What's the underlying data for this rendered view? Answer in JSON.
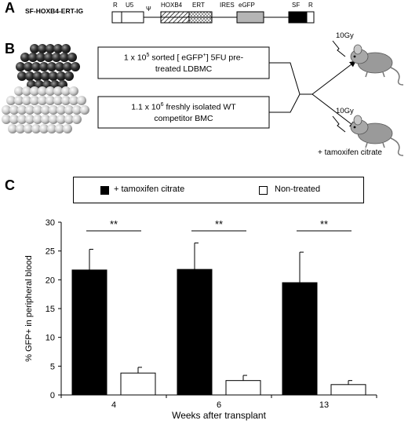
{
  "panel_a": {
    "letter": "A",
    "construct_name": "SF-HOXB4-ERT-IG",
    "segments": [
      "R",
      "U5",
      "Ψ",
      "HOXB4",
      "ERT",
      "IRES",
      "eGFP",
      "SF",
      "R"
    ]
  },
  "panel_b": {
    "letter": "B",
    "box1_line1": "1 x 10",
    "box1_sup": "5",
    "box1_line1_rest": " sorted [ eGFP",
    "box1_sup2": "+",
    "box1_line1_end": "] 5FU pre-",
    "box1_line2": "treated LDBMC",
    "box2_line1": "1.1 x 10",
    "box2_sup": "6",
    "box2_line1_rest": " freshly isolated WT",
    "box2_line2": "competitor BMC",
    "irradiation_top": "10Gy",
    "irradiation_bottom": "10Gy",
    "bottom_mouse_label": "+ tamoxifen citrate"
  },
  "panel_c": {
    "letter": "C",
    "legend": {
      "treated_label": "+ tamoxifen citrate",
      "untreated_label": "Non-treated",
      "treated_color": "#000000",
      "untreated_color": "#ffffff"
    },
    "significance": "**"
  },
  "chart_data": {
    "type": "bar",
    "categories": [
      "4",
      "6",
      "13"
    ],
    "series": [
      {
        "name": "+ tamoxifen citrate",
        "values": [
          21.7,
          21.8,
          19.5
        ],
        "errors": [
          3.6,
          4.6,
          5.3
        ],
        "color": "#000000"
      },
      {
        "name": "Non-treated",
        "values": [
          3.8,
          2.5,
          1.8
        ],
        "errors": [
          1.0,
          0.9,
          0.7
        ],
        "color": "#ffffff"
      }
    ],
    "xlabel": "Weeks after transplant",
    "ylabel": "% GFP+ in peripheral blood",
    "ylim": [
      0,
      30
    ],
    "yticks": [
      "0",
      "5",
      "10",
      "15",
      "20",
      "25",
      "30"
    ],
    "significance_markers": [
      "**",
      "**",
      "**"
    ],
    "grid": false,
    "legend_position": "top"
  }
}
